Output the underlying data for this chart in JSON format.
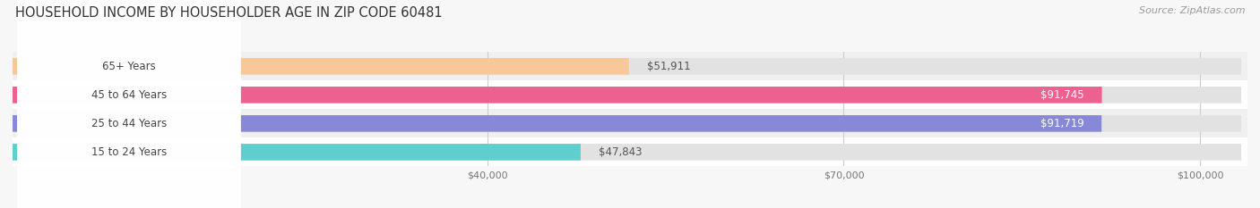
{
  "title": "HOUSEHOLD INCOME BY HOUSEHOLDER AGE IN ZIP CODE 60481",
  "source": "Source: ZipAtlas.com",
  "categories": [
    "15 to 24 Years",
    "25 to 44 Years",
    "45 to 64 Years",
    "65+ Years"
  ],
  "values": [
    47843,
    91719,
    91745,
    51911
  ],
  "bar_colors": [
    "#5ecece",
    "#8888d8",
    "#ee6090",
    "#f8c898"
  ],
  "bar_labels": [
    "$47,843",
    "$91,719",
    "$91,745",
    "$51,911"
  ],
  "x_ticks": [
    40000,
    70000,
    100000
  ],
  "x_tick_labels": [
    "$40,000",
    "$70,000",
    "$100,000"
  ],
  "x_max": 104000,
  "background_color": "#f7f7f7",
  "title_fontsize": 10.5,
  "source_fontsize": 8,
  "tick_fontsize": 8,
  "label_fontsize": 8.5,
  "bar_height": 0.58,
  "row_colors": [
    "#ffffff",
    "#f0f0f0",
    "#ffffff",
    "#f0f0f0"
  ]
}
